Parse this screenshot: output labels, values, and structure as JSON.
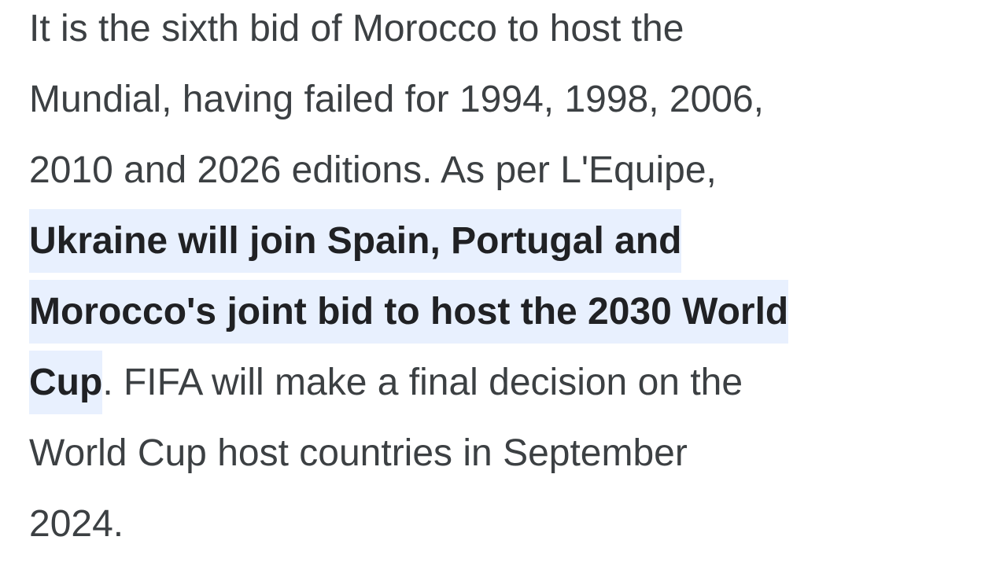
{
  "snippet": {
    "lines": [
      {
        "text": "It is the sixth bid of Morocco to host the"
      },
      {
        "text": "Mundial, having failed for 1994, 1998, 2006,"
      },
      {
        "text": "2010 and 2026 editions. As per L'Equipe,"
      },
      {
        "highlight": "Ukraine will join Spain, Portugal and"
      },
      {
        "highlight": "Morocco's joint bid to host the 2030 World"
      },
      {
        "highlight": "Cup",
        "text": ". FIFA will make a final decision on the"
      },
      {
        "text": "World Cup host countries in September"
      },
      {
        "text": "2024."
      }
    ]
  }
}
